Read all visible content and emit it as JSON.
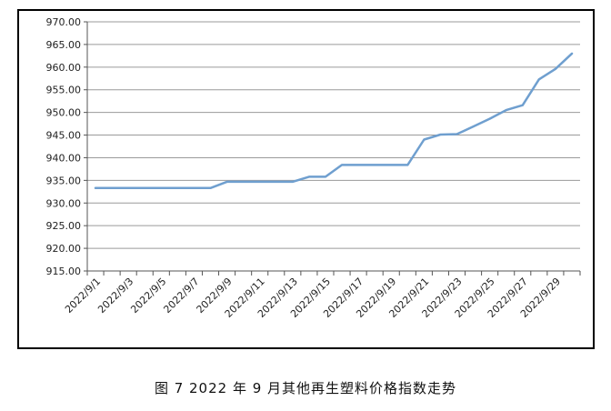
{
  "figure": {
    "caption": "图 7  2022 年 9 月其他再生塑料价格指数走势"
  },
  "chart_data": {
    "type": "line",
    "title": "",
    "xlabel": "",
    "ylabel": "",
    "ylim": [
      915,
      970
    ],
    "y_ticks": [
      "915.00",
      "920.00",
      "925.00",
      "930.00",
      "935.00",
      "940.00",
      "945.00",
      "950.00",
      "955.00",
      "960.00",
      "965.00",
      "970.00"
    ],
    "x_tick_labels": [
      "2022/9/1",
      "2022/9/3",
      "2022/9/5",
      "2022/9/7",
      "2022/9/9",
      "2022/9/11",
      "2022/9/13",
      "2022/9/15",
      "2022/9/17",
      "2022/9/19",
      "2022/9/21",
      "2022/9/23",
      "2022/9/25",
      "2022/9/27",
      "2022/9/29"
    ],
    "grid": true,
    "line_color": "#6f9fcf",
    "series": [
      {
        "x": [
          "2022/9/1",
          "2022/9/2",
          "2022/9/3",
          "2022/9/4",
          "2022/9/5",
          "2022/9/6",
          "2022/9/7",
          "2022/9/8",
          "2022/9/9",
          "2022/9/10",
          "2022/9/11",
          "2022/9/12",
          "2022/9/13",
          "2022/9/14",
          "2022/9/15",
          "2022/9/16",
          "2022/9/17",
          "2022/9/18",
          "2022/9/19",
          "2022/9/20",
          "2022/9/21",
          "2022/9/22",
          "2022/9/23",
          "2022/9/24",
          "2022/9/25",
          "2022/9/26",
          "2022/9/27",
          "2022/9/28",
          "2022/9/29",
          "2022/9/30"
        ],
        "values": [
          933.3,
          933.3,
          933.3,
          933.3,
          933.3,
          933.3,
          933.3,
          933.3,
          934.7,
          934.7,
          934.7,
          934.7,
          934.7,
          935.8,
          935.8,
          938.4,
          938.4,
          938.4,
          938.4,
          938.4,
          944.0,
          945.1,
          945.2,
          946.9,
          948.6,
          950.5,
          951.6,
          957.3,
          959.6,
          963.0
        ]
      }
    ]
  }
}
